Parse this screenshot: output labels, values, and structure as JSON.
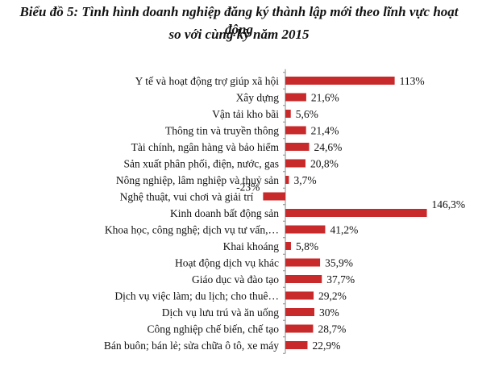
{
  "chart_data": {
    "type": "bar",
    "orientation": "horizontal",
    "title_line1": "Biểu đồ 5: Tình hình doanh nghiệp đăng ký thành lập mới theo lĩnh vực hoạt động",
    "title_line2": "so với cùng kỳ năm 2015",
    "xlabel": "",
    "ylabel": "",
    "unit": "%",
    "grid": false,
    "bar_color": "#c8292a",
    "xlim": [
      -23,
      146.3
    ],
    "categories": [
      "Y tế và hoạt động trợ giúp xã hội",
      "Xây dựng",
      "Vận tải kho bãi",
      "Thông tin và truyền thông",
      "Tài chính, ngân hàng và bảo hiểm",
      "Sản xuất phân phối, điện, nước, gas",
      "Nông nghiệp, lâm nghiệp và thuỷ sản",
      "Nghệ thuật, vui chơi và giải trí",
      "Kinh doanh bất động sản",
      "Khoa học, công nghệ; dịch vụ tư vấn,…",
      "Khai khoáng",
      "Hoạt động dịch vụ khác",
      "Giáo dục và đào tạo",
      "Dịch vụ việc làm; du lịch; cho thuê…",
      "Dịch vụ lưu trú và ăn uống",
      "Công nghiệp chế biến, chế tạo",
      "Bán buôn; bán lẻ; sửa chữa ô tô, xe máy"
    ],
    "values": [
      113,
      21.6,
      5.6,
      21.4,
      24.6,
      20.8,
      3.7,
      -23,
      146.3,
      41.2,
      5.8,
      35.9,
      37.7,
      29.2,
      30,
      28.7,
      22.9
    ],
    "value_labels": [
      "113%",
      "21,6%",
      "5,6%",
      "21,4%",
      "24,6%",
      "20,8%",
      "3,7%",
      "-23%",
      "146,3%",
      "41,2%",
      "5,8%",
      "35,9%",
      "37,7%",
      "29,2%",
      "30%",
      "28,7%",
      "22,9%"
    ]
  }
}
